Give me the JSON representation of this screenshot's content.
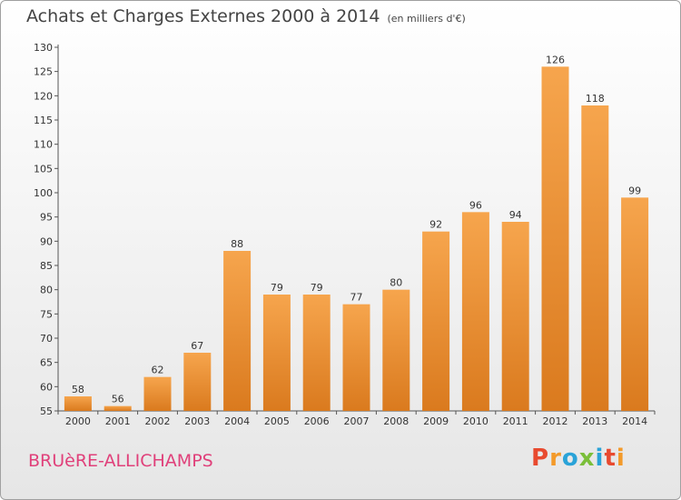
{
  "header": {
    "title": "Achats et Charges Externes 2000 à 2014",
    "unit": "(en milliers d'€)"
  },
  "footer": {
    "city": "BRUèRE-ALLICHAMPS",
    "brand": "Proxiti"
  },
  "colors": {
    "bar_top": "#f6a54d",
    "bar_bottom": "#da7a1e",
    "brand": [
      "#e84a2f",
      "#f39a2a",
      "#2aa3d8",
      "#7bbf3a",
      "#2aa3d8",
      "#e84a2f",
      "#f39a2a"
    ]
  },
  "chart_data": {
    "type": "bar",
    "title": "Achats et Charges Externes 2000 à 2014",
    "subtitle": "(en milliers d'€)",
    "xlabel": "",
    "ylabel": "",
    "categories": [
      "2000",
      "2001",
      "2002",
      "2003",
      "2004",
      "2005",
      "2006",
      "2007",
      "2008",
      "2009",
      "2010",
      "2011",
      "2012",
      "2013",
      "2014"
    ],
    "values": [
      58,
      56,
      62,
      67,
      88,
      79,
      79,
      77,
      80,
      92,
      96,
      94,
      126,
      118,
      99
    ],
    "ylim": [
      55,
      130
    ],
    "yticks": [
      55,
      60,
      65,
      70,
      75,
      80,
      85,
      90,
      95,
      100,
      105,
      110,
      115,
      120,
      125,
      130
    ],
    "grid": false
  }
}
